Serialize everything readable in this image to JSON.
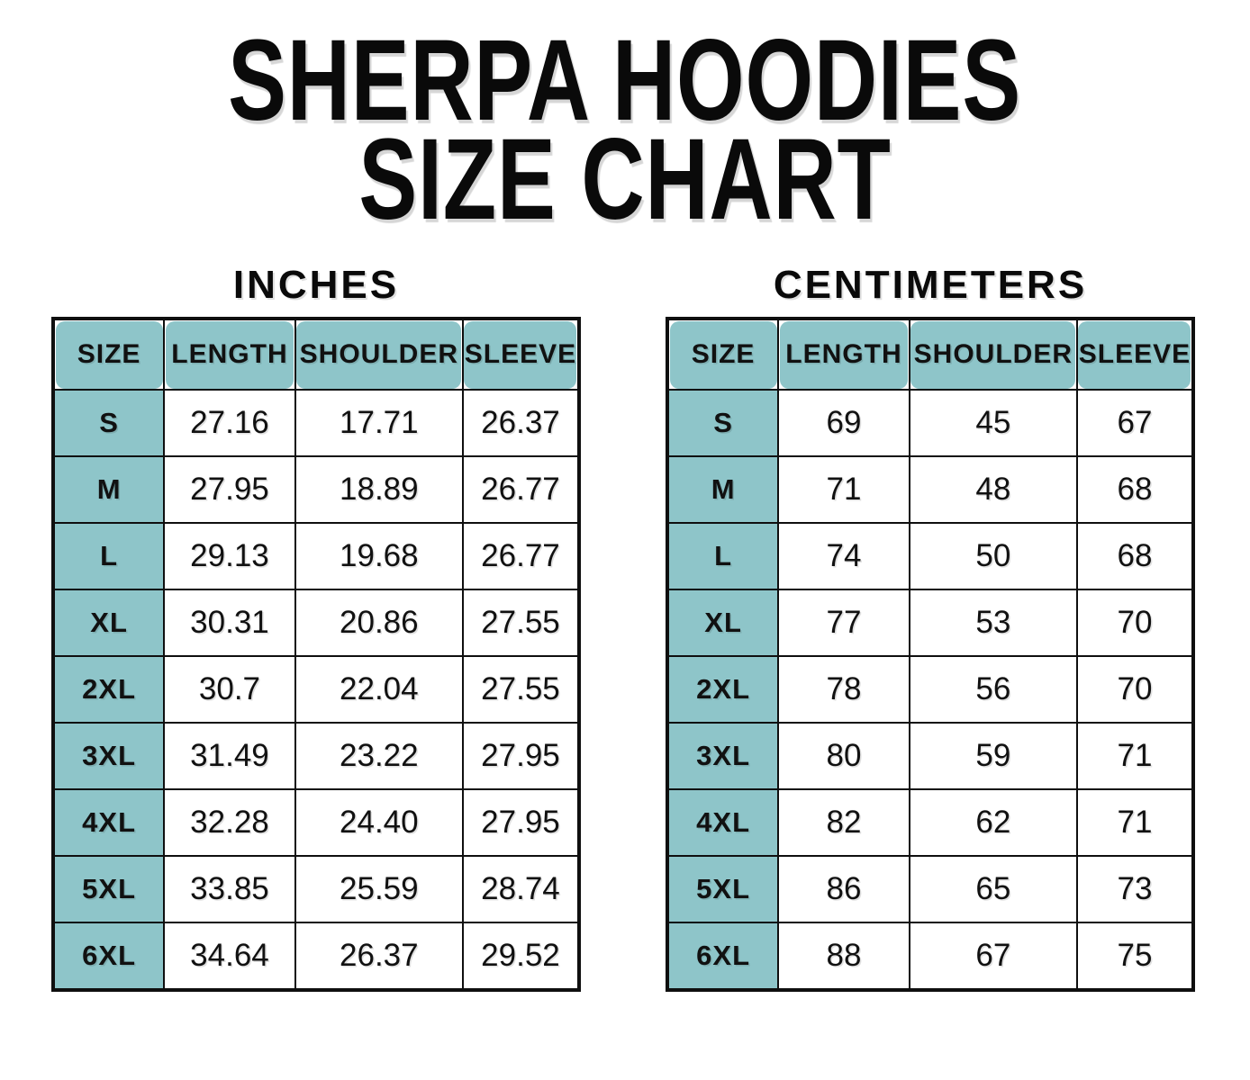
{
  "title": {
    "line1": "SHERPA HOODIES",
    "line2": "SIZE CHART"
  },
  "tables": [
    {
      "unit_label": "INCHES",
      "columns": [
        "SIZE",
        "LENGTH",
        "SHOULDER",
        "SLEEVE"
      ],
      "rows": [
        [
          "S",
          "27.16",
          "17.71",
          "26.37"
        ],
        [
          "M",
          "27.95",
          "18.89",
          "26.77"
        ],
        [
          "L",
          "29.13",
          "19.68",
          "26.77"
        ],
        [
          "XL",
          "30.31",
          "20.86",
          "27.55"
        ],
        [
          "2XL",
          "30.7",
          "22.04",
          "27.55"
        ],
        [
          "3XL",
          "31.49",
          "23.22",
          "27.95"
        ],
        [
          "4XL",
          "32.28",
          "24.40",
          "27.95"
        ],
        [
          "5XL",
          "33.85",
          "25.59",
          "28.74"
        ],
        [
          "6XL",
          "34.64",
          "26.37",
          "29.52"
        ]
      ]
    },
    {
      "unit_label": "CENTIMETERS",
      "columns": [
        "SIZE",
        "LENGTH",
        "SHOULDER",
        "SLEEVE"
      ],
      "rows": [
        [
          "S",
          "69",
          "45",
          "67"
        ],
        [
          "M",
          "71",
          "48",
          "68"
        ],
        [
          "L",
          "74",
          "50",
          "68"
        ],
        [
          "XL",
          "77",
          "53",
          "70"
        ],
        [
          "2XL",
          "78",
          "56",
          "70"
        ],
        [
          "3XL",
          "80",
          "59",
          "71"
        ],
        [
          "4XL",
          "82",
          "62",
          "71"
        ],
        [
          "5XL",
          "86",
          "65",
          "73"
        ],
        [
          "6XL",
          "88",
          "67",
          "75"
        ]
      ]
    }
  ],
  "colors": {
    "header_teal": "#8ec5c9",
    "grid_black": "#0f0f0f",
    "text": "#111111",
    "background": "#ffffff"
  }
}
